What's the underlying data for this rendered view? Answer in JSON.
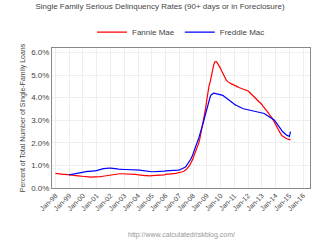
{
  "chart_data": {
    "type": "line",
    "title": "Single Family Serious Delinquency Rates (90+ days or in Foreclosure)",
    "ylabel": "Percent of Total Number of Single-Family Loans",
    "annotations": [
      "http://www.calculatedriskblog.com/"
    ],
    "x": [
      1998.0,
      1998.08,
      1998.17,
      1998.25,
      1998.33,
      1998.42,
      1998.5,
      1998.58,
      1998.67,
      1998.75,
      1998.83,
      1998.92,
      1999.0,
      1999.08,
      1999.17,
      1999.25,
      1999.33,
      1999.42,
      1999.5,
      1999.58,
      1999.67,
      1999.75,
      1999.83,
      1999.92,
      2000.0,
      2000.08,
      2000.17,
      2000.25,
      2000.33,
      2000.42,
      2000.5,
      2000.58,
      2000.67,
      2000.75,
      2000.83,
      2000.92,
      2001.0,
      2001.08,
      2001.17,
      2001.25,
      2001.33,
      2001.42,
      2001.5,
      2001.58,
      2001.67,
      2001.75,
      2001.83,
      2001.92,
      2002.0,
      2002.08,
      2002.17,
      2002.25,
      2002.33,
      2002.42,
      2002.5,
      2002.58,
      2002.67,
      2002.75,
      2002.83,
      2002.92,
      2003.0,
      2003.08,
      2003.17,
      2003.25,
      2003.33,
      2003.42,
      2003.5,
      2003.58,
      2003.67,
      2003.75,
      2003.83,
      2003.92,
      2004.0,
      2004.08,
      2004.17,
      2004.25,
      2004.33,
      2004.42,
      2004.5,
      2004.58,
      2004.67,
      2004.75,
      2004.83,
      2004.92,
      2005.0,
      2005.08,
      2005.17,
      2005.25,
      2005.33,
      2005.42,
      2005.5,
      2005.58,
      2005.67,
      2005.75,
      2005.83,
      2005.92,
      2006.0,
      2006.08,
      2006.17,
      2006.25,
      2006.33,
      2006.42,
      2006.5,
      2006.58,
      2006.67,
      2006.75,
      2006.83,
      2006.92,
      2007.0,
      2007.08,
      2007.17,
      2007.25,
      2007.33,
      2007.42,
      2007.5,
      2007.58,
      2007.67,
      2007.75,
      2007.83,
      2007.92,
      2008.0,
      2008.08,
      2008.17,
      2008.25,
      2008.33,
      2008.42,
      2008.5,
      2008.58,
      2008.67,
      2008.75,
      2008.83,
      2008.92,
      2009.0,
      2009.08,
      2009.17,
      2009.25,
      2009.33,
      2009.42,
      2009.5,
      2009.58,
      2009.67,
      2009.75,
      2009.83,
      2009.92,
      2010.0,
      2010.08,
      2010.17,
      2010.25,
      2010.33,
      2010.42,
      2010.5,
      2010.58,
      2010.67,
      2010.75,
      2010.83,
      2010.92,
      2011.0,
      2011.08,
      2011.17,
      2011.25,
      2011.33,
      2011.42,
      2011.5,
      2011.58,
      2011.67,
      2011.75,
      2011.83,
      2011.92,
      2012.0,
      2012.08,
      2012.17,
      2012.25,
      2012.33,
      2012.42,
      2012.5,
      2012.58,
      2012.67,
      2012.75,
      2012.83,
      2012.92,
      2013.0,
      2013.08,
      2013.17,
      2013.25,
      2013.33,
      2013.42,
      2013.5,
      2013.58,
      2013.67,
      2013.75,
      2013.83,
      2013.92,
      2014.0,
      2014.08,
      2014.17,
      2014.25,
      2014.33,
      2014.42,
      2014.5,
      2014.58,
      2014.67,
      2014.75,
      2014.83,
      2014.92,
      2015.0,
      2015.08
    ],
    "series": [
      {
        "name": "Fannie Mae",
        "color": "red",
        "values": [
          0.0065,
          0.0064,
          0.0063,
          0.0062,
          0.0061,
          0.0061,
          0.006,
          0.006,
          0.006,
          0.006,
          0.0059,
          0.0059,
          0.0058,
          0.0058,
          0.0057,
          0.0057,
          0.0056,
          0.0056,
          0.0055,
          0.0055,
          0.0054,
          0.0053,
          0.0053,
          0.0052,
          0.0052,
          0.0051,
          0.0051,
          0.005,
          0.0049,
          0.0049,
          0.0048,
          0.0048,
          0.0047,
          0.0047,
          0.0047,
          0.0047,
          0.0048,
          0.0048,
          0.0049,
          0.005,
          0.0051,
          0.0052,
          0.0053,
          0.0054,
          0.0055,
          0.0055,
          0.0056,
          0.0057,
          0.0058,
          0.0059,
          0.006,
          0.0061,
          0.0062,
          0.0062,
          0.0062,
          0.0063,
          0.0063,
          0.0063,
          0.0063,
          0.0063,
          0.0063,
          0.0063,
          0.0062,
          0.0062,
          0.0062,
          0.0061,
          0.0061,
          0.0061,
          0.006,
          0.006,
          0.006,
          0.0059,
          0.0058,
          0.0058,
          0.0057,
          0.0057,
          0.0056,
          0.0056,
          0.0055,
          0.0055,
          0.0054,
          0.0054,
          0.0054,
          0.0054,
          0.0055,
          0.0055,
          0.0055,
          0.0056,
          0.0056,
          0.0056,
          0.0057,
          0.0057,
          0.0057,
          0.0058,
          0.0058,
          0.0058,
          0.006,
          0.0061,
          0.0061,
          0.0062,
          0.0062,
          0.0063,
          0.0063,
          0.0064,
          0.0064,
          0.0065,
          0.0065,
          0.0065,
          0.0067,
          0.0068,
          0.0069,
          0.0072,
          0.0074,
          0.0077,
          0.0082,
          0.0087,
          0.0092,
          0.01,
          0.011,
          0.0118,
          0.013,
          0.0145,
          0.0158,
          0.017,
          0.0185,
          0.02,
          0.022,
          0.0245,
          0.0265,
          0.029,
          0.0318,
          0.0355,
          0.039,
          0.0425,
          0.0455,
          0.047,
          0.0498,
          0.0525,
          0.0545,
          0.0558,
          0.056,
          0.0555,
          0.0548,
          0.054,
          0.053,
          0.0518,
          0.0507,
          0.0495,
          0.0485,
          0.0478,
          0.0472,
          0.0468,
          0.0465,
          0.0462,
          0.046,
          0.0458,
          0.0455,
          0.0452,
          0.045,
          0.0448,
          0.0445,
          0.0443,
          0.0441,
          0.044,
          0.0438,
          0.0436,
          0.0434,
          0.0432,
          0.043,
          0.0425,
          0.042,
          0.0415,
          0.041,
          0.0405,
          0.04,
          0.0395,
          0.039,
          0.0385,
          0.038,
          0.0375,
          0.037,
          0.0363,
          0.0357,
          0.035,
          0.0343,
          0.0337,
          0.033,
          0.0323,
          0.0317,
          0.031,
          0.03,
          0.029,
          0.0278,
          0.0268,
          0.0258,
          0.0248,
          0.024,
          0.0234,
          0.023,
          0.0226,
          0.0222,
          0.022,
          0.0218,
          0.0216,
          0.0215,
          0.0213
        ]
      },
      {
        "name": "Freddie Mac",
        "color": "blue",
        "values": [
          null,
          null,
          null,
          null,
          null,
          null,
          null,
          null,
          null,
          null,
          null,
          null,
          0.0058,
          0.0059,
          0.006,
          0.0061,
          0.0063,
          0.0064,
          0.0065,
          0.0066,
          0.0068,
          0.007,
          0.0071,
          0.0072,
          0.0072,
          0.0073,
          0.0073,
          0.0074,
          0.0074,
          0.0074,
          0.0075,
          0.0075,
          0.0075,
          0.0076,
          0.0076,
          0.0076,
          0.0078,
          0.0079,
          0.008,
          0.0082,
          0.0083,
          0.0085,
          0.0086,
          0.0087,
          0.0087,
          0.0088,
          0.0088,
          0.0088,
          0.0088,
          0.0088,
          0.0087,
          0.0087,
          0.0086,
          0.0085,
          0.0085,
          0.0084,
          0.0083,
          0.0083,
          0.0082,
          0.0082,
          0.0082,
          0.0082,
          0.0082,
          0.0082,
          0.0082,
          0.0082,
          0.0082,
          0.0082,
          0.0082,
          0.0082,
          0.0081,
          0.0081,
          0.008,
          0.0079,
          0.0079,
          0.0078,
          0.0077,
          0.0077,
          0.0076,
          0.0076,
          0.0075,
          0.0074,
          0.0074,
          0.0073,
          0.0072,
          0.0072,
          0.0072,
          0.0073,
          0.0073,
          0.0073,
          0.0074,
          0.0074,
          0.0074,
          0.0075,
          0.0075,
          0.0075,
          0.0076,
          0.0076,
          0.0077,
          0.0077,
          0.0077,
          0.0078,
          0.0078,
          0.0078,
          0.0079,
          0.0079,
          0.0079,
          0.0079,
          0.008,
          0.0082,
          0.0083,
          0.0085,
          0.0088,
          0.0092,
          0.0097,
          0.0103,
          0.011,
          0.0118,
          0.0127,
          0.0138,
          0.015,
          0.0165,
          0.0178,
          0.0192,
          0.0207,
          0.0222,
          0.0237,
          0.0255,
          0.0272,
          0.029,
          0.031,
          0.033,
          0.0355,
          0.0375,
          0.0392,
          0.0405,
          0.0413,
          0.0418,
          0.042,
          0.0419,
          0.0418,
          0.0417,
          0.0416,
          0.0415,
          0.0415,
          0.0413,
          0.041,
          0.0406,
          0.0402,
          0.0398,
          0.0394,
          0.039,
          0.0386,
          0.0382,
          0.0378,
          0.0375,
          0.0371,
          0.0368,
          0.0365,
          0.0362,
          0.036,
          0.0357,
          0.0355,
          0.0353,
          0.0351,
          0.035,
          0.0348,
          0.0347,
          0.0346,
          0.0345,
          0.0344,
          0.0343,
          0.0342,
          0.0341,
          0.0341,
          0.034,
          0.0339,
          0.0338,
          0.0337,
          0.0336,
          0.0335,
          0.0332,
          0.033,
          0.0327,
          0.0324,
          0.0321,
          0.0318,
          0.0315,
          0.0312,
          0.0309,
          0.0305,
          0.03,
          0.0293,
          0.0285,
          0.0278,
          0.027,
          0.0263,
          0.0257,
          0.025,
          0.0245,
          0.024,
          0.0236,
          0.0233,
          0.0231,
          0.0228,
          0.025
        ]
      }
    ],
    "xlim": [
      1997.75,
      2016.5
    ],
    "xticks": [
      {
        "value": 1998,
        "label": "Jan-98"
      },
      {
        "value": 1999,
        "label": "Jan-99"
      },
      {
        "value": 2000,
        "label": "Jan-00"
      },
      {
        "value": 2001,
        "label": "Jan-01"
      },
      {
        "value": 2002,
        "label": "Jan-02"
      },
      {
        "value": 2003,
        "label": "Jan-03"
      },
      {
        "value": 2004,
        "label": "Jan-04"
      },
      {
        "value": 2005,
        "label": "Jan-05"
      },
      {
        "value": 2006,
        "label": "Jan-06"
      },
      {
        "value": 2007,
        "label": "Jan-07"
      },
      {
        "value": 2008,
        "label": "Jan-08"
      },
      {
        "value": 2009,
        "label": "Jan-09"
      },
      {
        "value": 2010,
        "label": "Jan-10"
      },
      {
        "value": 2011,
        "label": "Jan-11"
      },
      {
        "value": 2012,
        "label": "Jan-12"
      },
      {
        "value": 2013,
        "label": "Jan-13"
      },
      {
        "value": 2014,
        "label": "Jan-14"
      },
      {
        "value": 2015,
        "label": "Jan-15"
      },
      {
        "value": 2016,
        "label": "Jan-16"
      }
    ],
    "ylim": [
      0.0,
      0.062
    ],
    "yticks": [
      {
        "value": 0.0,
        "label": "0.0%"
      },
      {
        "value": 0.01,
        "label": "1.0%"
      },
      {
        "value": 0.02,
        "label": "2.0%"
      },
      {
        "value": 0.03,
        "label": "3.0%"
      },
      {
        "value": 0.04,
        "label": "4.0%"
      },
      {
        "value": 0.05,
        "label": "5.0%"
      },
      {
        "value": 0.06,
        "label": "6.0%"
      }
    ],
    "grid": true,
    "legend": "top"
  }
}
